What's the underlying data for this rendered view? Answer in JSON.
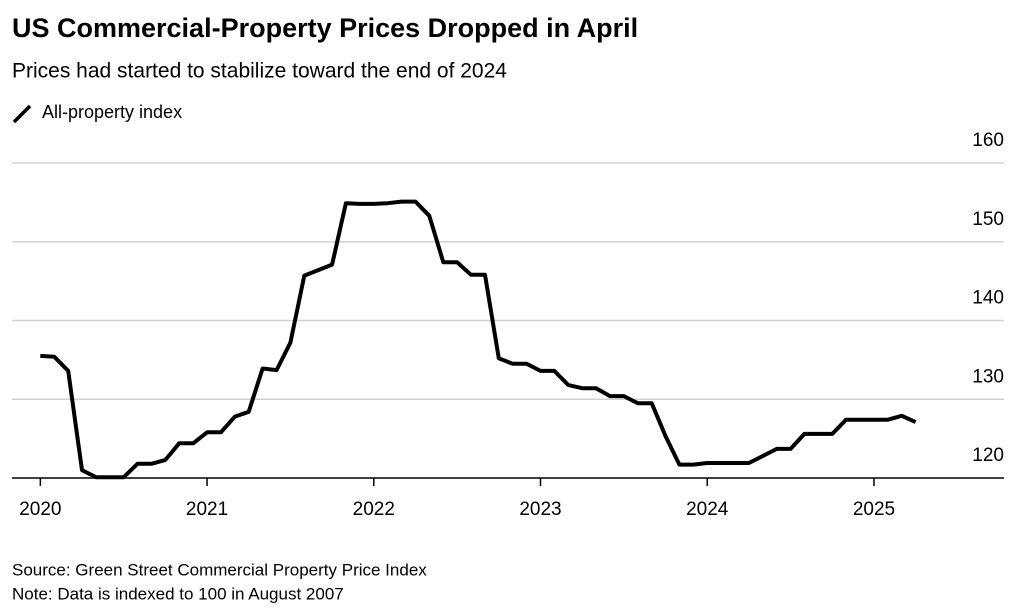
{
  "chart_data": {
    "type": "line",
    "title": "US Commercial-Property Prices Dropped in April",
    "subtitle": "Prices had started to stabilize toward the end of 2024",
    "source": "Source: Green Street Commercial Property Price Index",
    "note": "Note: Data is indexed to 100 in August 2007",
    "x": [
      2020,
      2020.083,
      2020.167,
      2020.25,
      2020.333,
      2020.417,
      2020.5,
      2020.583,
      2020.667,
      2020.75,
      2020.833,
      2020.917,
      2021,
      2021.083,
      2021.167,
      2021.25,
      2021.333,
      2021.417,
      2021.5,
      2021.583,
      2021.667,
      2021.75,
      2021.833,
      2021.917,
      2022,
      2022.083,
      2022.167,
      2022.25,
      2022.333,
      2022.417,
      2022.5,
      2022.583,
      2022.667,
      2022.75,
      2022.833,
      2022.917,
      2023,
      2023.083,
      2023.167,
      2023.25,
      2023.333,
      2023.417,
      2023.5,
      2023.583,
      2023.667,
      2023.75,
      2023.833,
      2023.917,
      2024,
      2024.083,
      2024.167,
      2024.25,
      2024.333,
      2024.417,
      2024.5,
      2024.583,
      2024.667,
      2024.75,
      2024.833,
      2024.917,
      2025,
      2025.083,
      2025.167,
      2025.25
    ],
    "series": [
      {
        "name": "All-property index",
        "color": "#000000",
        "values": [
          135.5,
          135.4,
          133.6,
          121.0,
          120.1,
          120.1,
          120.1,
          121.8,
          121.8,
          122.3,
          124.4,
          124.4,
          125.8,
          125.8,
          127.8,
          128.4,
          133.9,
          133.7,
          137.2,
          145.7,
          146.4,
          147.1,
          154.9,
          154.8,
          154.8,
          154.9,
          155.1,
          155.1,
          153.3,
          147.4,
          147.4,
          145.8,
          145.8,
          135.2,
          134.5,
          134.5,
          133.6,
          133.6,
          131.8,
          131.4,
          131.4,
          130.4,
          130.4,
          129.5,
          129.5,
          125.3,
          121.7,
          121.7,
          121.9,
          121.9,
          121.9,
          121.9,
          122.8,
          123.7,
          123.7,
          125.6,
          125.6,
          125.6,
          127.4,
          127.4,
          127.4,
          127.4,
          127.9,
          127.1
        ]
      }
    ],
    "xlim": [
      2019.83,
      2025.78
    ],
    "xticks": [
      2020,
      2021,
      2022,
      2023,
      2024,
      2025
    ],
    "ylim": [
      120,
      160
    ],
    "yticks": [
      120,
      130,
      140,
      150,
      160
    ],
    "grid": true
  }
}
